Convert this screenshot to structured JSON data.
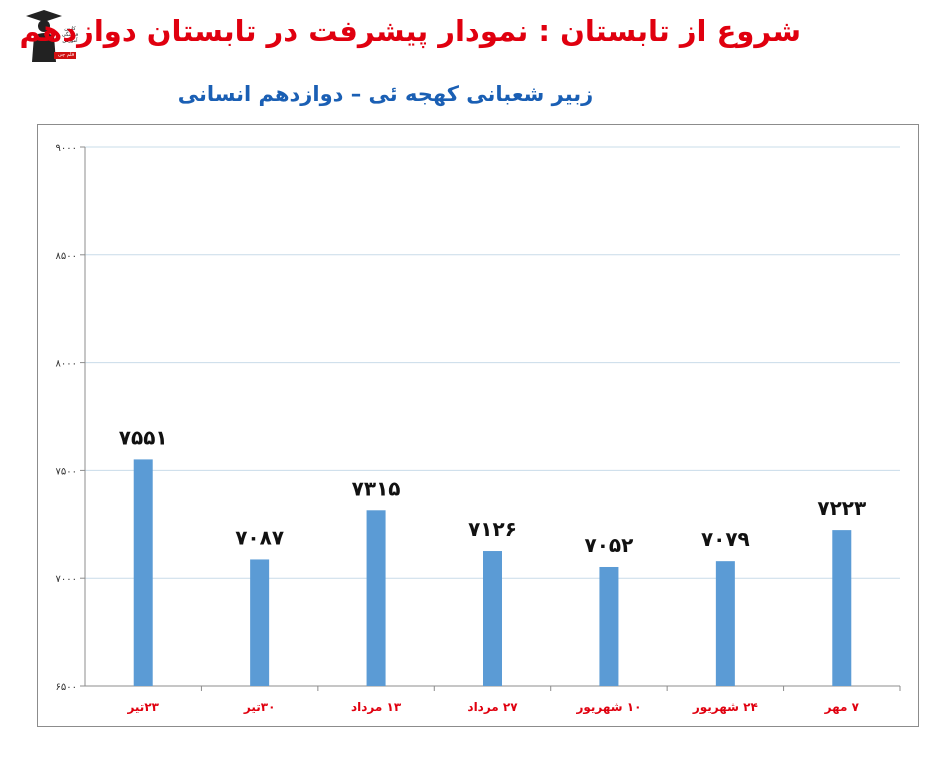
{
  "header": {
    "title": "شروع از تابستان : نمودار پیشرفت در تابستان دوازدهم",
    "subtitle": "زبیر شعبانی کهجه ئی – دوازدهم انسانی",
    "logo_text": [
      "کانون",
      "فرهنگی",
      "آموزش",
      "قلم چی"
    ]
  },
  "colors": {
    "title": "#e0000f",
    "subtitle": "#1a5fb4",
    "bar": "#5b9bd5",
    "grid": "#c9dce9",
    "xlabel": "#e0000f"
  },
  "chart_data": {
    "type": "bar",
    "categories": [
      "۲۳تیر",
      "۳۰تیر",
      "۱۳ مرداد",
      "۲۷ مرداد",
      "۱۰ شهریور",
      "۲۴ شهریور",
      "۷ مهر"
    ],
    "values": [
      7551,
      7087,
      7315,
      7126,
      7052,
      7079,
      7223
    ],
    "value_labels": [
      "۷۵۵۱",
      "۷۰۸۷",
      "۷۳۱۵",
      "۷۱۲۶",
      "۷۰۵۲",
      "۷۰۷۹",
      "۷۲۲۳"
    ],
    "ylim": [
      6500,
      9000
    ],
    "yticks": [
      6500,
      7000,
      7500,
      8000,
      8500,
      9000
    ],
    "ytick_labels": [
      "۶۵۰۰",
      "۷۰۰۰",
      "۷۵۰۰",
      "۸۰۰۰",
      "۸۵۰۰",
      "۹۰۰۰"
    ],
    "grid": true,
    "legend": "none",
    "xlabel": "",
    "ylabel": ""
  }
}
